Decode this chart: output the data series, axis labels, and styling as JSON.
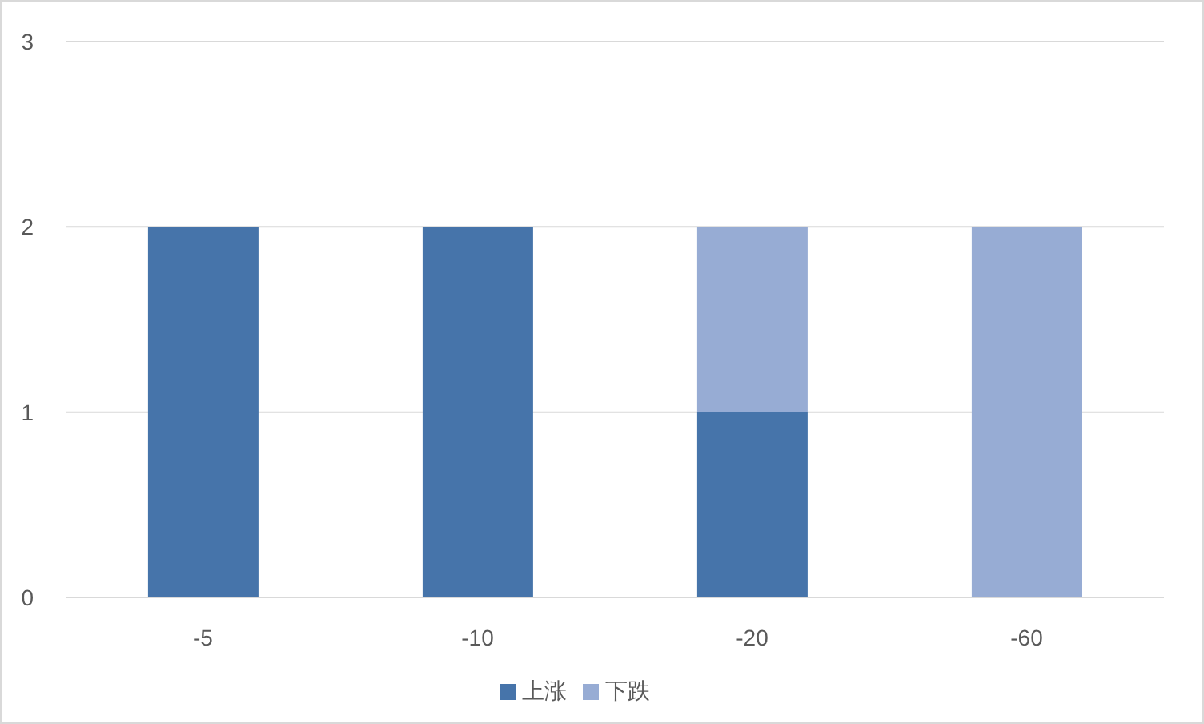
{
  "chart_data": {
    "type": "bar",
    "stacked": true,
    "categories": [
      "-5",
      "-10",
      "-20",
      "-60"
    ],
    "series": [
      {
        "name": "上涨",
        "color": "#4674aa",
        "values": [
          2,
          2,
          1,
          0
        ]
      },
      {
        "name": "下跌",
        "color": "#97acd4",
        "values": [
          0,
          0,
          1,
          2
        ]
      }
    ],
    "ylim": [
      0,
      3
    ],
    "yticks": [
      0,
      1,
      2,
      3
    ],
    "grid": "y",
    "legend": "bottom"
  }
}
